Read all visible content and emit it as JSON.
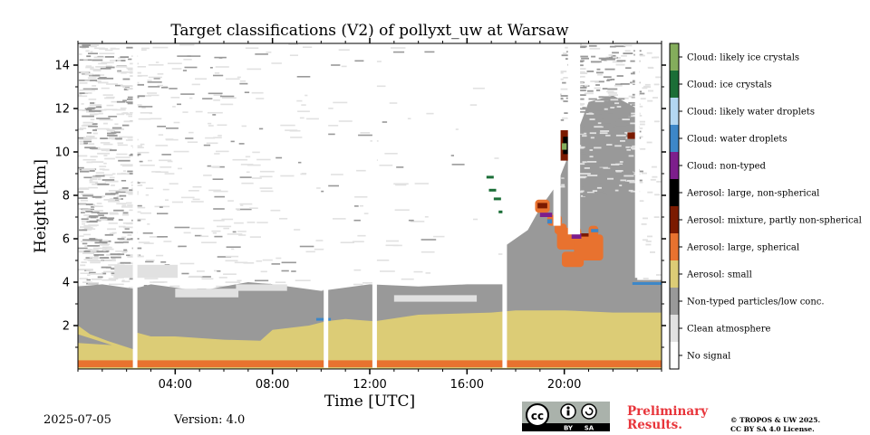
{
  "chart_data": {
    "type": "heatmap",
    "title": "Target classifications (V2) of pollyxt_uw at Warsaw",
    "xlabel": "Time [UTC]",
    "ylabel": "Height [km]",
    "xlim_hours": [
      0,
      24
    ],
    "ylim_km": [
      0,
      15
    ],
    "x_ticks": [
      "04:00",
      "08:00",
      "12:00",
      "16:00",
      "20:00"
    ],
    "y_ticks": [
      "2",
      "4",
      "6",
      "8",
      "10",
      "12",
      "14"
    ],
    "colorbar": [
      {
        "label": "Cloud: likely ice crystals",
        "color": "#84ad5c"
      },
      {
        "label": "Cloud: ice crystals",
        "color": "#1b6e37"
      },
      {
        "label": "Cloud: likely water droplets",
        "color": "#b3d7f2"
      },
      {
        "label": "Cloud: water droplets",
        "color": "#3d87c8"
      },
      {
        "label": "Cloud: non-typed",
        "color": "#7d1e8c"
      },
      {
        "label": "Aerosol: large, non-spherical",
        "color": "#000000"
      },
      {
        "label": "Aerosol: mixture, partly non-spherical",
        "color": "#7b1a00"
      },
      {
        "label": "Aerosol: large, spherical",
        "color": "#e8722f"
      },
      {
        "label": "Aerosol: small",
        "color": "#dccc76"
      },
      {
        "label": "Non-typed particles/low conc.",
        "color": "#999999"
      },
      {
        "label": "Clean atmosphere",
        "color": "#e1e1e1"
      },
      {
        "label": "No signal",
        "color": "#ffffff"
      }
    ],
    "no_signal_gaps_utc": [
      2.35,
      10.2,
      12.2,
      17.55,
      19.7,
      20.4,
      23.0
    ],
    "aerosol_small_top_km": {
      "00:00": 2.0,
      "02:30": 1.4,
      "06:00": 1.3,
      "10:00": 2.1,
      "14:00": 2.5,
      "20:00": 2.7,
      "23:00": 2.6
    },
    "nontyped_top_km": {
      "00:00": 3.8,
      "04:00": 3.9,
      "08:00": 3.9,
      "12:00": 3.8,
      "16:00": 3.9,
      "17:35": 5.8,
      "19:00": 7.5,
      "22:00": 12.0
    }
  },
  "footer": {
    "date": "2025-07-05",
    "version": "Version: 4.0",
    "preliminary_line1": "Preliminary",
    "preliminary_line2": "Results.",
    "copyright_line1": "© TROPOS & UW 2025.",
    "copyright_line2": "CC BY SA 4.0 License.",
    "cc_badge_text": "cc",
    "cc_by": "BY",
    "cc_sa": "SA"
  }
}
